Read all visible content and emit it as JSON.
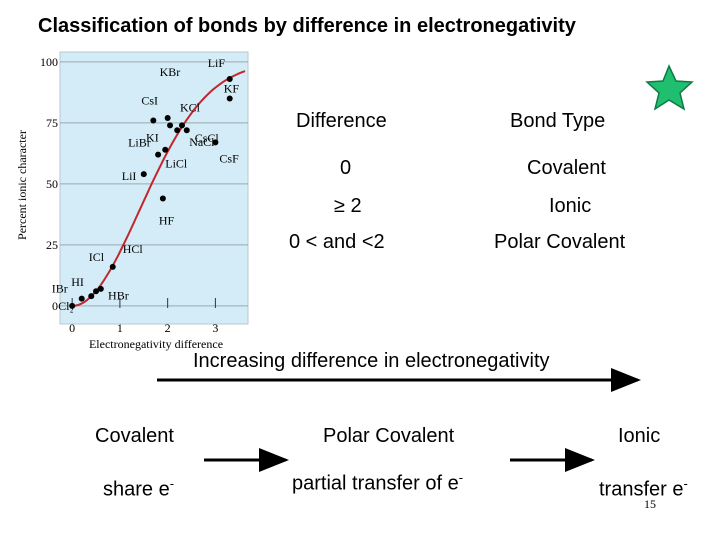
{
  "header": {
    "title": "Classification of bonds by difference in electronegativity"
  },
  "chart_data": {
    "type": "scatter",
    "xlabel": "Electronegativity difference",
    "ylabel": "Percent ionic character",
    "xlim": [
      -0.15,
      3.62
    ],
    "ylim": [
      -2.5,
      101.6
    ],
    "xticks": [
      0,
      1,
      2,
      3
    ],
    "yticks": [
      0,
      25,
      50,
      75,
      100
    ],
    "grid": true,
    "color": "#000000",
    "curve_color": "#c0282d",
    "points": [
      {
        "label": "Cl₂",
        "x": 0,
        "y": 0
      },
      {
        "label": "IBr",
        "x": 0.2,
        "y": 3
      },
      {
        "label": "HI",
        "x": 0.4,
        "y": 4
      },
      {
        "label": "HBr",
        "x": 0.5,
        "y": 6
      },
      {
        "label": "ICl",
        "x": 0.6,
        "y": 7
      },
      {
        "label": "HCl",
        "x": 0.85,
        "y": 16
      },
      {
        "label": "LiI",
        "x": 1.5,
        "y": 54
      },
      {
        "label": "HF",
        "x": 1.9,
        "y": 44
      },
      {
        "label": "LiBr",
        "x": 1.8,
        "y": 62
      },
      {
        "label": "LiCl",
        "x": 1.95,
        "y": 64
      },
      {
        "label": "CsI",
        "x": 1.7,
        "y": 76
      },
      {
        "label": "KI",
        "x": 2.05,
        "y": 74
      },
      {
        "label": "KBr",
        "x": 2.0,
        "y": 77
      },
      {
        "label": "KCl",
        "x": 2.3,
        "y": 74
      },
      {
        "label": "NaCl",
        "x": 2.2,
        "y": 72
      },
      {
        "label": "CsCl",
        "x": 2.4,
        "y": 72
      },
      {
        "label": "CsF",
        "x": 3.0,
        "y": 67
      },
      {
        "label": "KF",
        "x": 3.3,
        "y": 85
      },
      {
        "label": "LiF",
        "x": 3.3,
        "y": 93
      }
    ]
  },
  "table": {
    "header": [
      "Difference",
      "Bond Type"
    ],
    "rows": [
      [
        "0",
        "Covalent"
      ],
      [
        "≥ 2",
        "Ionic"
      ],
      [
        "0 < and <2",
        "Polar Covalent"
      ]
    ]
  },
  "scale": {
    "caption": "Increasing difference in electronegativity",
    "types": [
      "Covalent",
      "Polar Covalent",
      "Ionic"
    ],
    "descriptions": [
      {
        "text": "share e",
        "sup": "-"
      },
      {
        "text": "partial transfer of e",
        "sup": "-"
      },
      {
        "text": "transfer e",
        "sup": "-"
      }
    ]
  },
  "page_number": "15"
}
